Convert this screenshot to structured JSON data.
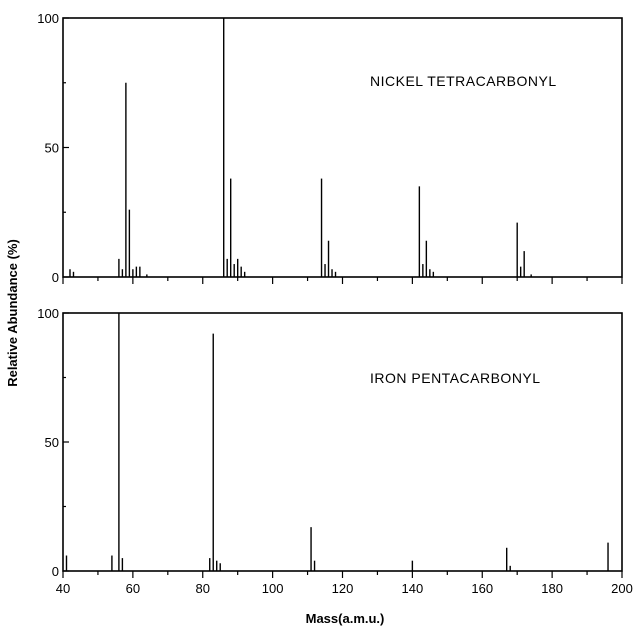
{
  "chart_data": [
    {
      "type": "bar",
      "annotation": "NICKEL TETRACARBONYL",
      "xlabel": "",
      "ylabel": "",
      "xlim": [
        40,
        200
      ],
      "ylim": [
        0,
        100
      ],
      "yticks": [
        "0",
        "50",
        "100"
      ],
      "grid": false,
      "series": [
        {
          "x": [
            42,
            43,
            56,
            57,
            58,
            59,
            60,
            61,
            62,
            64,
            86,
            87,
            88,
            89,
            90,
            91,
            92,
            114,
            115,
            116,
            117,
            118,
            142,
            143,
            144,
            145,
            146,
            170,
            171,
            172,
            174
          ],
          "values": [
            3,
            2,
            7,
            3,
            75,
            26,
            3,
            4,
            4,
            1,
            100,
            7,
            38,
            5,
            7,
            4,
            2,
            38,
            5,
            14,
            3,
            2,
            35,
            5,
            14,
            3,
            2,
            21,
            4,
            10,
            1
          ]
        }
      ]
    },
    {
      "type": "bar",
      "annotation": "IRON PENTACARBONYL",
      "xlabel": "Mass(a.m.u.)",
      "ylabel": "Relative Abundance (%)",
      "xlim": [
        40,
        200
      ],
      "ylim": [
        0,
        100
      ],
      "xticks": [
        "40",
        "60",
        "80",
        "100",
        "120",
        "140",
        "160",
        "180",
        "200"
      ],
      "yticks": [
        "0",
        "50",
        "100"
      ],
      "grid": false,
      "series": [
        {
          "x": [
            41,
            54,
            56,
            57,
            82,
            83,
            84,
            85,
            111,
            112,
            140,
            167,
            168,
            196
          ],
          "values": [
            6,
            6,
            100,
            5,
            5,
            92,
            4,
            3,
            17,
            4,
            4,
            9,
            2,
            11
          ]
        }
      ]
    }
  ]
}
